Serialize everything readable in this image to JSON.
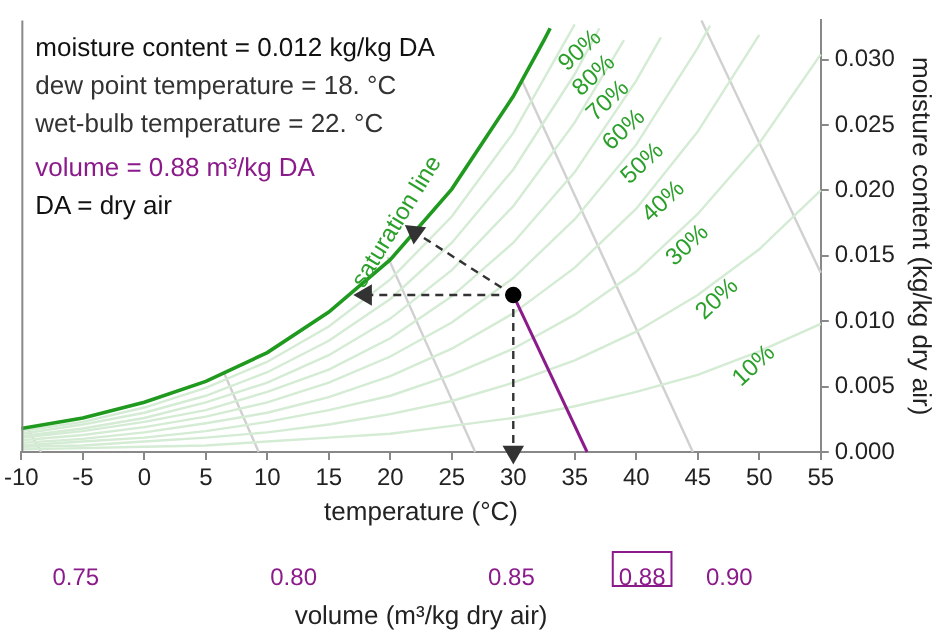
{
  "chart_data": {
    "type": "line",
    "xlabel": "temperature (°C)",
    "ylabel": "moisture content (kg/kg dry air)",
    "x2label": "volume (m³/kg dry air)",
    "xlim": [
      -10,
      55
    ],
    "xticks": [
      -10,
      -5,
      0,
      5,
      10,
      15,
      20,
      25,
      30,
      35,
      40,
      45,
      50,
      55
    ],
    "ylim": [
      0,
      0.033
    ],
    "yticks": [
      {
        "value": 0,
        "label": "0.000"
      },
      {
        "value": 0.005,
        "label": "0.005"
      },
      {
        "value": 0.01,
        "label": "0.010"
      },
      {
        "value": 0.015,
        "label": "0.015"
      },
      {
        "value": 0.02,
        "label": "0.020"
      },
      {
        "value": 0.025,
        "label": "0.025"
      },
      {
        "value": 0.03,
        "label": "0.030"
      }
    ],
    "x2lim": [
      0.7375,
      0.921
    ],
    "x2ticks": [
      0.75,
      {
        "value": 0.8,
        "label": "0.80"
      },
      0.85,
      0.88,
      {
        "value": 0.9,
        "label": "0.90"
      }
    ],
    "grid": false,
    "legend": false,
    "marker": "none",
    "line_style": "solid",
    "annotations": [
      "moisture content = 0.012 kg/kg DA",
      "dew point temperature = 18. °C",
      "wet-bulb temperature = 22. °C",
      "volume = 0.88 m³/kg DA",
      "DA = dry air"
    ],
    "series": [
      {
        "color": "#d0d0d0",
        "x": [
          -8.4,
          -9.5
        ],
        "values": [
          0,
          0.0018
        ]
      },
      {
        "color": "#d0d0d0",
        "x": [
          9.3,
          6.5
        ],
        "values": [
          0,
          0.006
        ]
      },
      {
        "color": "#d0d0d0",
        "x": [
          26.9,
          19.8
        ],
        "values": [
          0,
          0.0149
        ]
      },
      {
        "color": "#d0d0d0",
        "x": [
          44.6,
          30.7
        ],
        "values": [
          0,
          0.0284
        ]
      },
      {
        "color": "#d0d0d0",
        "x": [
          55,
          45.3
        ],
        "values": [
          0.0137,
          0.033
        ]
      },
      {
        "name": "10%",
        "color": "#d4ebd4",
        "x": [
          -10,
          -5,
          0,
          5,
          10,
          15,
          20,
          25,
          30,
          35,
          40,
          45,
          50,
          55
        ],
        "values": [
          0.0002,
          0.0003,
          0.0004,
          0.0005,
          0.0008,
          0.0011,
          0.0014,
          0.002,
          0.0026,
          0.0035,
          0.0046,
          0.0059,
          0.0077,
          0.0098
        ]
      },
      {
        "name": "20%",
        "color": "#d4ebd4",
        "x": [
          -10,
          -5,
          0,
          5,
          10,
          15,
          20,
          25,
          30,
          35,
          40,
          45,
          50,
          55
        ],
        "values": [
          0.0004,
          0.0005,
          0.0008,
          0.0011,
          0.0015,
          0.0021,
          0.0029,
          0.0039,
          0.0053,
          0.007,
          0.0092,
          0.012,
          0.0155,
          0.02
        ]
      },
      {
        "name": "30%",
        "color": "#d4ebd4",
        "x": [
          -10,
          -5,
          0,
          5,
          10,
          15,
          20,
          25,
          30,
          35,
          40,
          45,
          50,
          55
        ],
        "values": [
          0.0005,
          0.0008,
          0.0011,
          0.0016,
          0.0023,
          0.0032,
          0.0043,
          0.0059,
          0.0079,
          0.0105,
          0.0138,
          0.0182,
          0.0236,
          0.0304
        ]
      },
      {
        "name": "40%",
        "color": "#d4ebd4",
        "x": [
          -10,
          -5,
          0,
          5,
          10,
          15,
          20,
          25,
          30,
          35,
          40,
          45,
          50
        ],
        "values": [
          0.0007,
          0.001,
          0.0015,
          0.0022,
          0.003,
          0.0042,
          0.0058,
          0.0079,
          0.0106,
          0.0141,
          0.0186,
          0.0245,
          0.0319
        ]
      },
      {
        "name": "50%",
        "color": "#d4ebd4",
        "x": [
          -10,
          -5,
          0,
          5,
          10,
          15,
          20,
          25,
          30,
          35,
          40,
          45,
          46
        ],
        "values": [
          0.0009,
          0.0013,
          0.0019,
          0.0027,
          0.0038,
          0.0053,
          0.0073,
          0.0099,
          0.0133,
          0.0178,
          0.0235,
          0.0309,
          0.0326
        ]
      },
      {
        "name": "60%",
        "color": "#d4ebd4",
        "x": [
          -10,
          -5,
          0,
          5,
          10,
          15,
          20,
          25,
          30,
          35,
          40,
          42
        ],
        "values": [
          0.0011,
          0.0016,
          0.0023,
          0.0032,
          0.0046,
          0.0063,
          0.0087,
          0.0119,
          0.016,
          0.0214,
          0.0284,
          0.0317
        ]
      },
      {
        "name": "70%",
        "color": "#d4ebd4",
        "x": [
          -10,
          -5,
          0,
          5,
          10,
          15,
          20,
          25,
          30,
          35,
          39
        ],
        "values": [
          0.0012,
          0.0018,
          0.0026,
          0.0038,
          0.0053,
          0.0074,
          0.0102,
          0.0139,
          0.0188,
          0.0252,
          0.0315
        ]
      },
      {
        "name": "80%",
        "color": "#d4ebd4",
        "x": [
          -10,
          -5,
          0,
          5,
          10,
          15,
          20,
          25,
          30,
          35,
          37
        ],
        "values": [
          0.0014,
          0.0021,
          0.003,
          0.0043,
          0.0061,
          0.0085,
          0.0117,
          0.016,
          0.0216,
          0.0289,
          0.0324
        ]
      },
      {
        "name": "90%",
        "color": "#d4ebd4",
        "x": [
          -10,
          -5,
          0,
          5,
          10,
          15,
          20,
          25,
          30,
          35
        ],
        "values": [
          0.0016,
          0.0023,
          0.0034,
          0.0049,
          0.0069,
          0.0096,
          0.0132,
          0.018,
          0.0244,
          0.0327
        ]
      },
      {
        "name": "saturation line",
        "color": "#1f9a1f",
        "x": [
          -10,
          -5,
          0,
          5,
          10,
          15,
          20,
          25,
          30,
          32.5,
          33
        ],
        "values": [
          0.0018,
          0.0026,
          0.0038,
          0.0054,
          0.0076,
          0.0107,
          0.0147,
          0.0201,
          0.0272,
          0.0315,
          0.0324
        ]
      },
      {
        "color": "#8b1a8b",
        "x": [
          30,
          36
        ],
        "values": [
          0.012,
          0
        ]
      },
      {
        "color": "#333333",
        "line_style": "dashed",
        "marker": "triangle",
        "x": [
          30,
          18
        ],
        "values": [
          0.012,
          0.012
        ]
      },
      {
        "color": "#333333",
        "line_style": "dashed",
        "marker": "triangle",
        "x": [
          30,
          22
        ],
        "values": [
          0.012,
          0.0168
        ]
      },
      {
        "color": "#333333",
        "line_style": "dashed",
        "marker": "triangle",
        "x": [
          30,
          30
        ],
        "values": [
          0.012,
          0
        ]
      },
      {
        "type": "scatter",
        "color": "#000000",
        "marker": "circle",
        "x": [
          30
        ],
        "values": [
          0.012
        ]
      }
    ]
  }
}
